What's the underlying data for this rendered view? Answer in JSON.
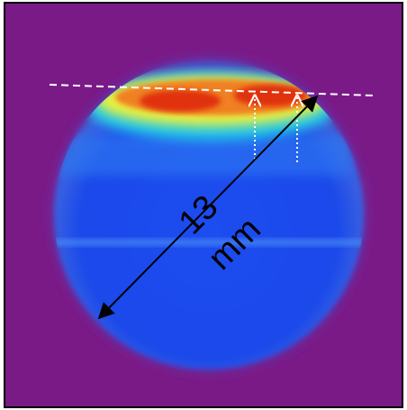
{
  "annotations": {
    "length": "13",
    "unit": "mm"
  }
}
